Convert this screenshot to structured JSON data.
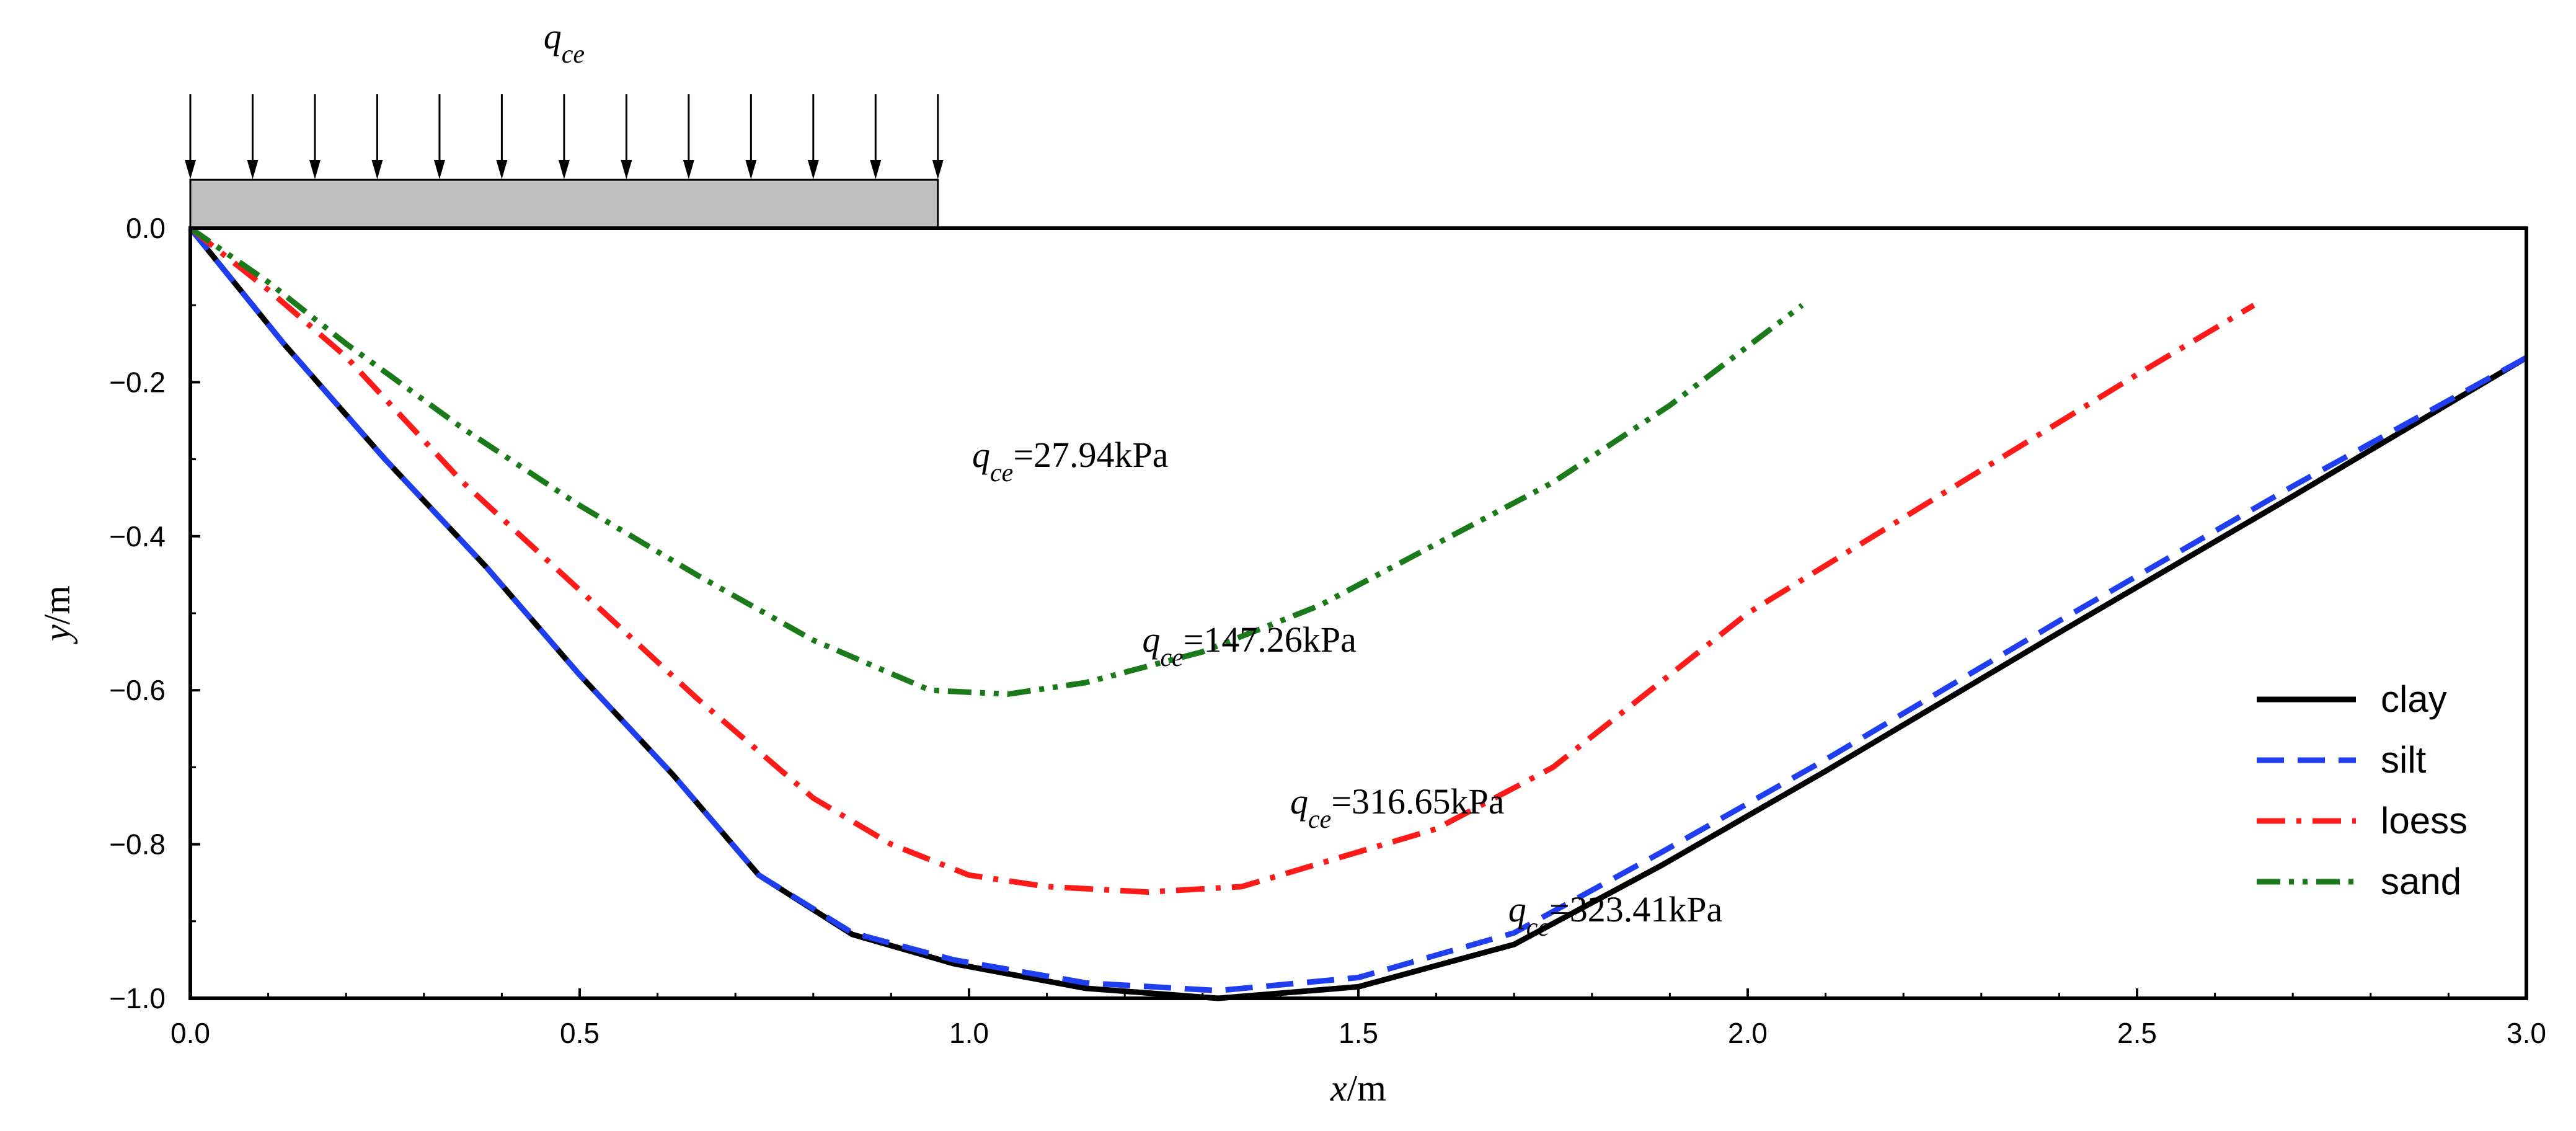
{
  "chart_data": {
    "type": "line",
    "title": "",
    "xlabel_var": "x",
    "xlabel_unit": "/m",
    "ylabel_var": "y",
    "ylabel_unit": "/m",
    "xlim": [
      0,
      3.0
    ],
    "ylim": [
      -1.0,
      0.0
    ],
    "xticks": [
      "0.0",
      "0.5",
      "1.0",
      "1.5",
      "2.0",
      "2.5",
      "3.0"
    ],
    "yticks": [
      "0.0",
      "−0.2",
      "−0.4",
      "−0.6",
      "−0.8",
      "−1.0"
    ],
    "load": {
      "symbol_main": "q",
      "symbol_sub": "ce",
      "footing_x_range": [
        0,
        0.96
      ],
      "arrow_count": 13
    },
    "series": [
      {
        "name": "clay",
        "color": "#000000",
        "dash": "solid",
        "x": [
          0,
          0.12,
          0.25,
          0.38,
          0.5,
          0.62,
          0.73,
          0.85,
          0.98,
          1.15,
          1.32,
          1.5,
          1.7,
          1.89,
          2.1,
          2.4,
          2.7,
          3.0
        ],
        "y": [
          0,
          -0.15,
          -0.3,
          -0.44,
          -0.58,
          -0.71,
          -0.84,
          -0.917,
          -0.955,
          -0.987,
          -1.0,
          -0.985,
          -0.93,
          -0.827,
          -0.705,
          -0.525,
          -0.348,
          -0.168
        ]
      },
      {
        "name": "silt",
        "color": "#1f3ef0",
        "dash": "long-dash",
        "x": [
          0,
          0.12,
          0.25,
          0.38,
          0.5,
          0.62,
          0.73,
          0.85,
          0.98,
          1.15,
          1.32,
          1.5,
          1.7,
          1.89,
          2.1,
          2.4,
          2.7,
          3.0
        ],
        "y": [
          0,
          -0.15,
          -0.3,
          -0.44,
          -0.58,
          -0.71,
          -0.84,
          -0.915,
          -0.95,
          -0.98,
          -0.99,
          -0.973,
          -0.915,
          -0.81,
          -0.69,
          -0.51,
          -0.335,
          -0.168
        ]
      },
      {
        "name": "loess",
        "color": "#ff1a1a",
        "dash": "dash-dot",
        "x": [
          0,
          0.1,
          0.2,
          0.35,
          0.5,
          0.65,
          0.8,
          0.9,
          1.0,
          1.1,
          1.23,
          1.35,
          1.5,
          1.6,
          1.75,
          2.0,
          2.25,
          2.5,
          2.65
        ],
        "y": [
          0,
          -0.08,
          -0.167,
          -0.33,
          -0.47,
          -0.61,
          -0.74,
          -0.8,
          -0.84,
          -0.855,
          -0.862,
          -0.855,
          -0.81,
          -0.78,
          -0.7,
          -0.5,
          -0.345,
          -0.19,
          -0.1
        ]
      },
      {
        "name": "sand",
        "color": "#1a7a1a",
        "dash": "dash-dot-dot",
        "x": [
          0,
          0.1,
          0.2,
          0.35,
          0.5,
          0.65,
          0.8,
          0.95,
          1.05,
          1.15,
          1.3,
          1.45,
          1.6,
          1.75,
          1.9,
          2.07
        ],
        "y": [
          0,
          -0.07,
          -0.15,
          -0.26,
          -0.36,
          -0.45,
          -0.535,
          -0.6,
          -0.605,
          -0.59,
          -0.55,
          -0.49,
          -0.41,
          -0.33,
          -0.23,
          -0.1
        ]
      }
    ],
    "legend_position": "right",
    "annotations": [
      {
        "series": "sand",
        "prefix_main": "q",
        "prefix_sub": "ce",
        "text": "=27.94kPa",
        "at_x": 1.13,
        "at_y": -0.31
      },
      {
        "series": "loess",
        "prefix_main": "q",
        "prefix_sub": "ce",
        "text": "=147.26kPa",
        "at_x": 1.36,
        "at_y": -0.55
      },
      {
        "series": "silt",
        "prefix_main": "q",
        "prefix_sub": "ce",
        "text": "=316.65kPa",
        "at_x": 1.55,
        "at_y": -0.76
      },
      {
        "series": "clay",
        "prefix_main": "q",
        "prefix_sub": "ce",
        "text": "=323.41kPa",
        "at_x": 1.83,
        "at_y": -0.9
      }
    ]
  }
}
